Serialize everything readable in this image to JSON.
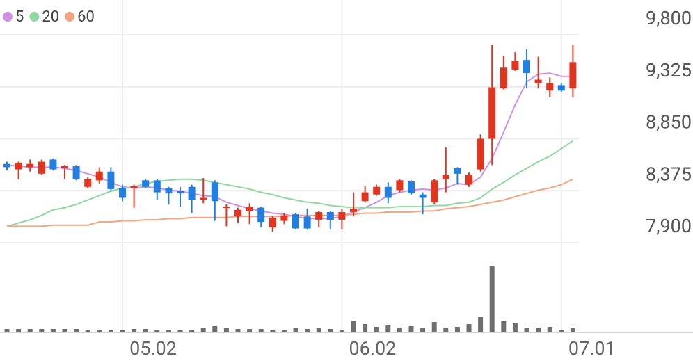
{
  "chart_data": {
    "type": "candlestick",
    "categories": [
      null,
      null,
      null,
      null,
      null,
      null,
      null,
      null,
      null,
      null,
      "05.02",
      null,
      null,
      null,
      null,
      null,
      null,
      null,
      null,
      null,
      null,
      null,
      null,
      null,
      null,
      null,
      null,
      null,
      null,
      "06.02",
      null,
      null,
      null,
      null,
      null,
      null,
      null,
      null,
      null,
      null,
      null,
      null,
      null,
      null,
      null,
      null,
      null,
      null,
      "07.01",
      null
    ],
    "open": [
      8620,
      8570,
      8590,
      8530,
      8660,
      8580,
      8600,
      8410,
      8470,
      8550,
      8400,
      8400,
      8470,
      8470,
      8400,
      8370,
      8410,
      8290,
      8450,
      8220,
      8140,
      8190,
      8220,
      8040,
      8100,
      8160,
      8140,
      8110,
      8180,
      8110,
      8180,
      8280,
      8340,
      8410,
      8380,
      8460,
      8340,
      8270,
      8480,
      8580,
      8430,
      8570,
      8850,
      9310,
      9480,
      9570,
      9360,
      9290,
      9340,
      9310
    ],
    "high": [
      8640,
      8640,
      8660,
      8660,
      8670,
      8610,
      8610,
      8500,
      8590,
      8590,
      8430,
      8430,
      8480,
      8480,
      8410,
      8410,
      8430,
      8490,
      8470,
      8250,
      8220,
      8260,
      8230,
      8140,
      8170,
      8170,
      8210,
      8190,
      8190,
      8210,
      8360,
      8420,
      8430,
      8450,
      8480,
      8470,
      8360,
      8480,
      8770,
      8590,
      8540,
      8890,
      9710,
      9610,
      9640,
      9670,
      9600,
      9410,
      9360,
      9710
    ],
    "low": [
      8560,
      8480,
      8550,
      8520,
      8560,
      8480,
      8470,
      8400,
      8440,
      8370,
      8280,
      8220,
      8400,
      8290,
      8250,
      8230,
      8170,
      8260,
      8100,
      8050,
      8080,
      8070,
      8040,
      8000,
      8070,
      8020,
      8020,
      8040,
      8020,
      8020,
      8140,
      8270,
      8330,
      8260,
      8360,
      8340,
      8160,
      8250,
      8360,
      8430,
      8410,
      8550,
      8610,
      9300,
      9470,
      9310,
      9310,
      9230,
      9280,
      9230
    ],
    "close": [
      8590,
      8630,
      8620,
      8640,
      8570,
      8600,
      8480,
      8480,
      8550,
      8390,
      8310,
      8420,
      8410,
      8360,
      8350,
      8350,
      8290,
      8310,
      8280,
      8230,
      8200,
      8230,
      8090,
      8130,
      8150,
      8030,
      8030,
      8180,
      8110,
      8180,
      8210,
      8360,
      8410,
      8310,
      8470,
      8350,
      8310,
      8470,
      8520,
      8530,
      8520,
      8850,
      9320,
      9500,
      9560,
      9450,
      9390,
      9360,
      9290,
      9550
    ],
    "volume": [
      5,
      5,
      5,
      5,
      5,
      5,
      5,
      4,
      4,
      3,
      4,
      5,
      5,
      4,
      3,
      3,
      4,
      6,
      9,
      6,
      5,
      5,
      5,
      4,
      4,
      6,
      5,
      6,
      5,
      4,
      16,
      12,
      8,
      11,
      7,
      9,
      6,
      15,
      7,
      8,
      12,
      22,
      95,
      16,
      13,
      7,
      7,
      8,
      4,
      7
    ],
    "up_color": "#e5341d",
    "down_color": "#1f7fe5",
    "volume_color": "#6e6e6e",
    "series": [
      {
        "name": "5",
        "color": "#d190e6",
        "values": [
          8610,
          8600,
          8590,
          8590,
          8590,
          8580,
          8560,
          8530,
          8500,
          8450,
          8410,
          8400,
          8410,
          8400,
          8380,
          8370,
          8350,
          8330,
          8320,
          8270,
          8240,
          8210,
          8190,
          8170,
          8160,
          8140,
          8120,
          8120,
          8120,
          8140,
          8180,
          8220,
          8270,
          8330,
          8360,
          8380,
          8390,
          8380,
          8400,
          8440,
          8430,
          8500,
          8670,
          8910,
          9160,
          9370,
          9440,
          9450,
          9420,
          9420
        ]
      },
      {
        "name": "20",
        "color": "#8fd8a0",
        "values": [
          8050,
          8080,
          8110,
          8150,
          8200,
          8220,
          8250,
          8290,
          8330,
          8370,
          8400,
          8410,
          8440,
          8460,
          8470,
          8480,
          8480,
          8470,
          8450,
          8430,
          8410,
          8390,
          8360,
          8340,
          8310,
          8290,
          8270,
          8260,
          8240,
          8230,
          8220,
          8220,
          8220,
          8220,
          8230,
          8230,
          8230,
          8240,
          8240,
          8260,
          8270,
          8310,
          8390,
          8450,
          8520,
          8580,
          8640,
          8690,
          8760,
          8830
        ]
      },
      {
        "name": "60",
        "color": "#f4a47e",
        "values": [
          8050,
          8050,
          8050,
          8050,
          8060,
          8060,
          8060,
          8060,
          8090,
          8090,
          8100,
          8100,
          8110,
          8110,
          8120,
          8120,
          8130,
          8130,
          8130,
          8130,
          8140,
          8140,
          8140,
          8140,
          8140,
          8150,
          8150,
          8150,
          8150,
          8150,
          8160,
          8170,
          8170,
          8180,
          8180,
          8180,
          8190,
          8190,
          8210,
          8220,
          8230,
          8250,
          8270,
          8290,
          8320,
          8350,
          8380,
          8400,
          8430,
          8480
        ]
      }
    ],
    "ylim": [
      7900,
      9800
    ],
    "yticks": [
      {
        "value": 7900,
        "label": "7,900"
      },
      {
        "value": 8375,
        "label": "8,375"
      },
      {
        "value": 8850,
        "label": "8,850"
      },
      {
        "value": 9325,
        "label": "9,325"
      },
      {
        "value": 9800,
        "label": "9,800"
      }
    ],
    "grid": true
  }
}
